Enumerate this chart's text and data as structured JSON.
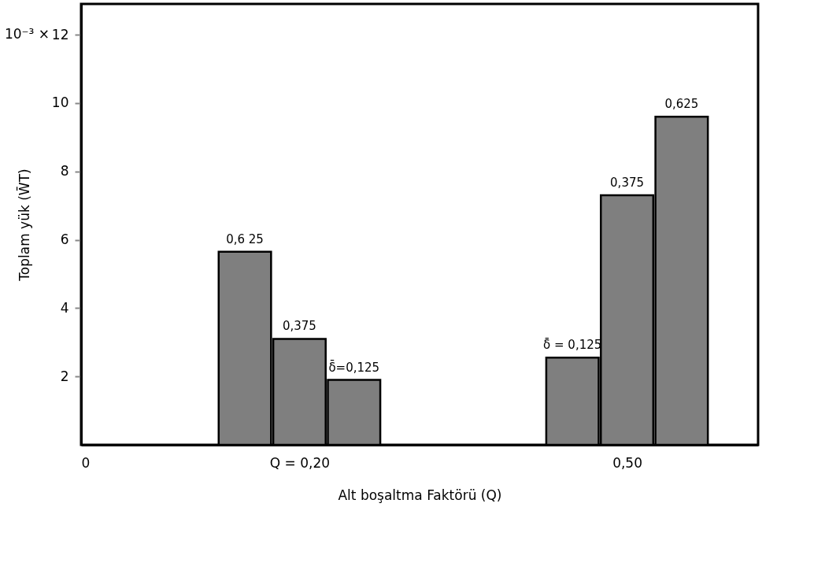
{
  "chart_data": {
    "type": "bar",
    "xlabel": "Alt boşaltma Faktörü  (Q)",
    "ylabel": "Toplam yük (W̄T)",
    "xlim": [
      0,
      0.62
    ],
    "xticks": [
      {
        "value": 0,
        "label": "0"
      },
      {
        "value": 0.2,
        "label": "Q = 0,20"
      },
      {
        "value": 0.5,
        "label": "0,50"
      }
    ],
    "ylim": [
      0,
      12.9
    ],
    "yticks": [
      2,
      4,
      6,
      8,
      10,
      12
    ],
    "grid": false,
    "series": [
      {
        "color": "#7f7f7f",
        "x": [
          0.15,
          0.2,
          0.25
        ],
        "values": [
          5.65,
          3.1,
          1.9
        ]
      },
      {
        "color": "#7f7f7f",
        "x": [
          0.45,
          0.5,
          0.55
        ],
        "values": [
          2.55,
          7.3,
          9.6
        ]
      }
    ],
    "annotations": [
      "10⁻³ ×",
      {
        "text": "0,6 25",
        "x": 0.15,
        "y": 5.65
      },
      {
        "text": "0,375",
        "x": 0.2,
        "y": 3.1
      },
      {
        "text": "δ̄=0,125",
        "x": 0.25,
        "y": 1.9
      },
      {
        "text": "δ̄ = 0,125",
        "x": 0.45,
        "y": 2.55
      },
      {
        "text": "0,375",
        "x": 0.5,
        "y": 7.3
      },
      {
        "text": "0,625",
        "x": 0.55,
        "y": 9.6
      }
    ]
  }
}
